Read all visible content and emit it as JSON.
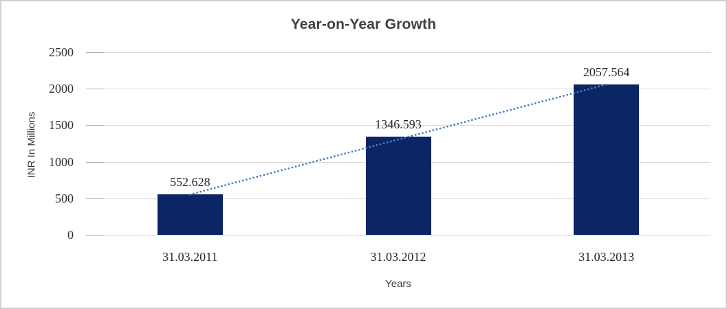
{
  "chart_data": {
    "type": "bar",
    "title": "Year-on-Year Growth",
    "xlabel": "Years",
    "ylabel": "INR In Millions",
    "categories": [
      "31.03.2011",
      "31.03.2012",
      "31.03.2013"
    ],
    "values": [
      552.628,
      1346.593,
      2057.564
    ],
    "data_labels": [
      "552.628",
      "1346.593",
      "2057.564"
    ],
    "yticks": [
      0,
      500,
      1000,
      1500,
      2000,
      2500
    ],
    "ylim": [
      0,
      2500
    ],
    "grid": true,
    "legend_position": "none",
    "bar_color": "#0b2463",
    "trendline": {
      "type": "linear",
      "style": "dotted",
      "color": "#4a80c0",
      "from_category": "31.03.2011",
      "to_category": "31.03.2013"
    }
  }
}
